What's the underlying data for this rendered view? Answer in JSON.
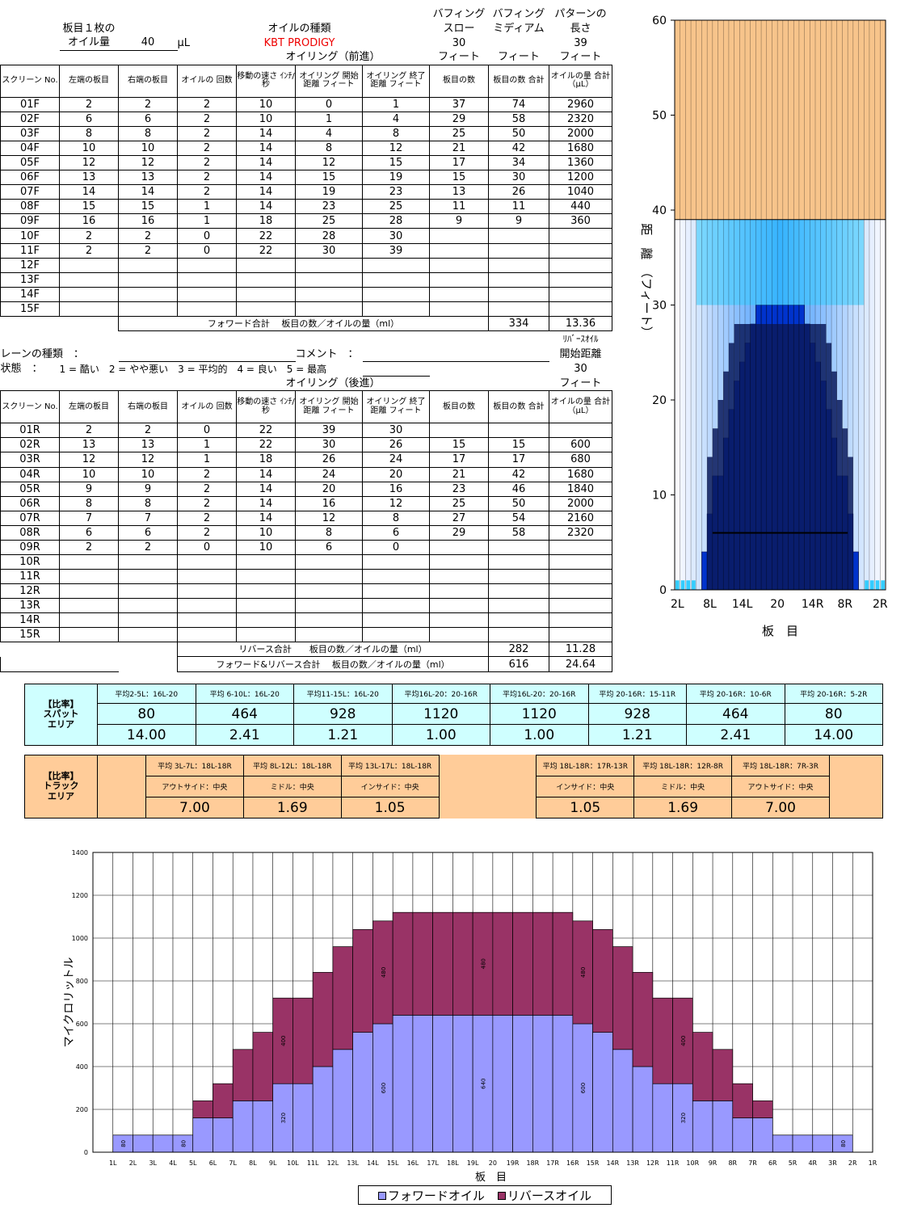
{
  "header": {
    "oil_amount_label1": "板目１枚の",
    "oil_amount_label2": "オイル量",
    "oil_amount_value": "40",
    "oil_amount_unit": "μL",
    "oil_type_label": "オイルの種類",
    "oil_type_value": "KBT PRODIGY",
    "buff_slow_label1": "バフィング",
    "buff_slow_label2": "スロー",
    "buff_slow_value": "30",
    "buff_med_label1": "バフィング",
    "buff_med_label2": "ミディアム",
    "pattern_label1": "パターンの",
    "pattern_label2": "長さ",
    "pattern_value": "39",
    "feet": "フィート",
    "forward_title": "オイリング（前進）",
    "reverse_title": "オイリング（後進）"
  },
  "columns": [
    "スクリーン No.",
    "左端の板目",
    "右端の板目",
    "オイルの 回数",
    "移動の速さ ｲﾝﾁ/秒",
    "オイリング 開始距離 フィート",
    "オイリング 終了距離 フィート",
    "板目の数",
    "板目の数 合計",
    "オイルの量 合計（μL）"
  ],
  "forward_rows": [
    [
      "01F",
      "2",
      "2",
      "2",
      "10",
      "0",
      "1",
      "37",
      "74",
      "2960"
    ],
    [
      "02F",
      "6",
      "6",
      "2",
      "10",
      "1",
      "4",
      "29",
      "58",
      "2320"
    ],
    [
      "03F",
      "8",
      "8",
      "2",
      "14",
      "4",
      "8",
      "25",
      "50",
      "2000"
    ],
    [
      "04F",
      "10",
      "10",
      "2",
      "14",
      "8",
      "12",
      "21",
      "42",
      "1680"
    ],
    [
      "05F",
      "12",
      "12",
      "2",
      "14",
      "12",
      "15",
      "17",
      "34",
      "1360"
    ],
    [
      "06F",
      "13",
      "13",
      "2",
      "14",
      "15",
      "19",
      "15",
      "30",
      "1200"
    ],
    [
      "07F",
      "14",
      "14",
      "2",
      "14",
      "19",
      "23",
      "13",
      "26",
      "1040"
    ],
    [
      "08F",
      "15",
      "15",
      "1",
      "14",
      "23",
      "25",
      "11",
      "11",
      "440"
    ],
    [
      "09F",
      "16",
      "16",
      "1",
      "18",
      "25",
      "28",
      "9",
      "9",
      "360"
    ],
    [
      "10F",
      "2",
      "2",
      "0",
      "22",
      "28",
      "30",
      "",
      "",
      ""
    ],
    [
      "11F",
      "2",
      "2",
      "0",
      "22",
      "30",
      "39",
      "",
      "",
      ""
    ],
    [
      "12F",
      "",
      "",
      "",
      "",
      "",
      "",
      "",
      "",
      ""
    ],
    [
      "13F",
      "",
      "",
      "",
      "",
      "",
      "",
      "",
      "",
      ""
    ],
    [
      "14F",
      "",
      "",
      "",
      "",
      "",
      "",
      "",
      "",
      ""
    ],
    [
      "15F",
      "",
      "",
      "",
      "",
      "",
      "",
      "",
      "",
      ""
    ]
  ],
  "forward_total": {
    "label": "フォワード合計　 板目の数／オイルの量（ml）",
    "boards": "334",
    "oil": "13.36"
  },
  "lane": {
    "type_label": "レーンの種類　：",
    "comment_label": "コメント　：",
    "condition_label": "状態　：",
    "condition_scale": "1 = 酷い　2 = やや悪い　3 = 平均的　4 = 良い　5 = 最高",
    "reverse_oil_label1": "ﾘﾊﾞｰｽｵｲﾙ",
    "reverse_oil_label2": "開始距離",
    "reverse_oil_value": "30"
  },
  "reverse_rows": [
    [
      "01R",
      "2",
      "2",
      "0",
      "22",
      "39",
      "30",
      "",
      "",
      ""
    ],
    [
      "02R",
      "13",
      "13",
      "1",
      "22",
      "30",
      "26",
      "15",
      "15",
      "600"
    ],
    [
      "03R",
      "12",
      "12",
      "1",
      "18",
      "26",
      "24",
      "17",
      "17",
      "680"
    ],
    [
      "04R",
      "10",
      "10",
      "2",
      "14",
      "24",
      "20",
      "21",
      "42",
      "1680"
    ],
    [
      "05R",
      "9",
      "9",
      "2",
      "14",
      "20",
      "16",
      "23",
      "46",
      "1840"
    ],
    [
      "06R",
      "8",
      "8",
      "2",
      "14",
      "16",
      "12",
      "25",
      "50",
      "2000"
    ],
    [
      "07R",
      "7",
      "7",
      "2",
      "14",
      "12",
      "8",
      "27",
      "54",
      "2160"
    ],
    [
      "08R",
      "6",
      "6",
      "2",
      "10",
      "8",
      "6",
      "29",
      "58",
      "2320"
    ],
    [
      "09R",
      "2",
      "2",
      "0",
      "10",
      "6",
      "0",
      "",
      "",
      ""
    ],
    [
      "10R",
      "",
      "",
      "",
      "",
      "",
      "",
      "",
      "",
      ""
    ],
    [
      "11R",
      "",
      "",
      "",
      "",
      "",
      "",
      "",
      "",
      ""
    ],
    [
      "12R",
      "",
      "",
      "",
      "",
      "",
      "",
      "",
      "",
      ""
    ],
    [
      "13R",
      "",
      "",
      "",
      "",
      "",
      "",
      "",
      "",
      ""
    ],
    [
      "14R",
      "",
      "",
      "",
      "",
      "",
      "",
      "",
      "",
      ""
    ],
    [
      "15R",
      "",
      "",
      "",
      "",
      "",
      "",
      "",
      "",
      ""
    ]
  ],
  "reverse_total": {
    "label": "リバース合計　　板目の数／オイルの量（ml）",
    "boards": "282",
    "oil": "11.28"
  },
  "grand_total": {
    "label": "フォワード&リバース合計　 板目の数／オイルの量（ml）",
    "boards": "616",
    "oil": "24.64"
  },
  "spot_area": {
    "label1": "【比率】",
    "label2": "スパット",
    "label3": "エリア",
    "headers": [
      "平均2-5L：16L-20",
      "平均 6-10L：16L-20",
      "平均11-15L：16L-20",
      "平均16L-20：20-16R",
      "平均16L-20：20-16R",
      "平均 20-16R：15-11R",
      "平均 20-16R：10-6R",
      "平均 20-16R：5-2R"
    ],
    "values": [
      "80",
      "464",
      "928",
      "1120",
      "1120",
      "928",
      "464",
      "80"
    ],
    "ratios": [
      "14.00",
      "2.41",
      "1.21",
      "1.00",
      "1.00",
      "1.21",
      "2.41",
      "14.00"
    ]
  },
  "track_area": {
    "label1": "【比率】",
    "label2": "トラック",
    "label3": "エリア",
    "headers": [
      "平均 3L-7L：18L-18R",
      "平均 8L-12L：18L-18R",
      "平均 13L-17L：18L-18R",
      "",
      "平均 18L-18R：17R-13R",
      "平均 18L-18R：12R-8R",
      "平均 18L-18R：7R-3R"
    ],
    "names": [
      "アウトサイド：中央",
      "ミドル：中央",
      "インサイド：中央",
      "",
      "インサイド：中央",
      "ミドル：中央",
      "アウトサイド：中央"
    ],
    "ratios": [
      "7.00",
      "1.69",
      "1.05",
      "",
      "1.05",
      "1.69",
      "7.00"
    ]
  },
  "lane_chart": {
    "ylabel": "距　離　（フィート）",
    "xlabel": "板　目",
    "yticks": [
      "0",
      "10",
      "20",
      "30",
      "40",
      "50",
      "60"
    ],
    "xticks": [
      "2L",
      "8L",
      "14L",
      "20",
      "14R",
      "8R",
      "2R"
    ],
    "colors": {
      "dry": "#f7c48b",
      "oil_dark": "#0a1a5c",
      "oil_mid": "#0033cc",
      "oil_light": "#33ccff"
    }
  },
  "chart_data": {
    "type": "bar",
    "stacked": true,
    "ylabel": "マイクロリットル",
    "xlabel": "板　目",
    "ylim": [
      0,
      1400
    ],
    "yticks": [
      "0",
      "200",
      "400",
      "600",
      "800",
      "1000",
      "1200",
      "1400"
    ],
    "categories": [
      "1L",
      "2L",
      "3L",
      "4L",
      "5L",
      "6L",
      "7L",
      "8L",
      "9L",
      "10L",
      "11L",
      "12L",
      "13L",
      "14L",
      "15L",
      "16L",
      "17L",
      "18L",
      "19L",
      "20",
      "19R",
      "18R",
      "17R",
      "16R",
      "15R",
      "14R",
      "13R",
      "12R",
      "11R",
      "10R",
      "9R",
      "8R",
      "7R",
      "6R",
      "5R",
      "4R",
      "3R",
      "2R",
      "1R"
    ],
    "series": [
      {
        "name": "フォワードオイル",
        "color": "#9999ff",
        "values": [
          0,
          80,
          80,
          80,
          80,
          160,
          160,
          240,
          240,
          320,
          320,
          400,
          480,
          560,
          600,
          640,
          640,
          640,
          640,
          640,
          640,
          640,
          640,
          640,
          600,
          560,
          480,
          400,
          320,
          320,
          240,
          240,
          160,
          160,
          80,
          80,
          80,
          80,
          0
        ]
      },
      {
        "name": "リバースオイル",
        "color": "#993366",
        "values": [
          0,
          0,
          0,
          0,
          0,
          80,
          160,
          240,
          320,
          400,
          400,
          440,
          480,
          480,
          480,
          480,
          480,
          480,
          480,
          480,
          480,
          480,
          480,
          480,
          480,
          480,
          480,
          440,
          400,
          400,
          320,
          240,
          160,
          80,
          0,
          0,
          0,
          0,
          0
        ]
      }
    ],
    "data_labels": [
      {
        "category": "2L",
        "series": 0,
        "text": "80"
      },
      {
        "category": "5L",
        "series": 0,
        "text": "80"
      },
      {
        "category": "10L",
        "series": 0,
        "text": "320"
      },
      {
        "category": "10L",
        "series": 1,
        "text": "400"
      },
      {
        "category": "15L",
        "series": 0,
        "text": "600"
      },
      {
        "category": "15L",
        "series": 1,
        "text": "480"
      },
      {
        "category": "20",
        "series": 0,
        "text": "640"
      },
      {
        "category": "20",
        "series": 1,
        "text": "480"
      },
      {
        "category": "15R",
        "series": 0,
        "text": "600"
      },
      {
        "category": "15R",
        "series": 1,
        "text": "480"
      },
      {
        "category": "10R",
        "series": 0,
        "text": "320"
      },
      {
        "category": "10R",
        "series": 1,
        "text": "400"
      },
      {
        "category": "2R",
        "series": 0,
        "text": "80"
      }
    ],
    "legend": "bottom"
  }
}
